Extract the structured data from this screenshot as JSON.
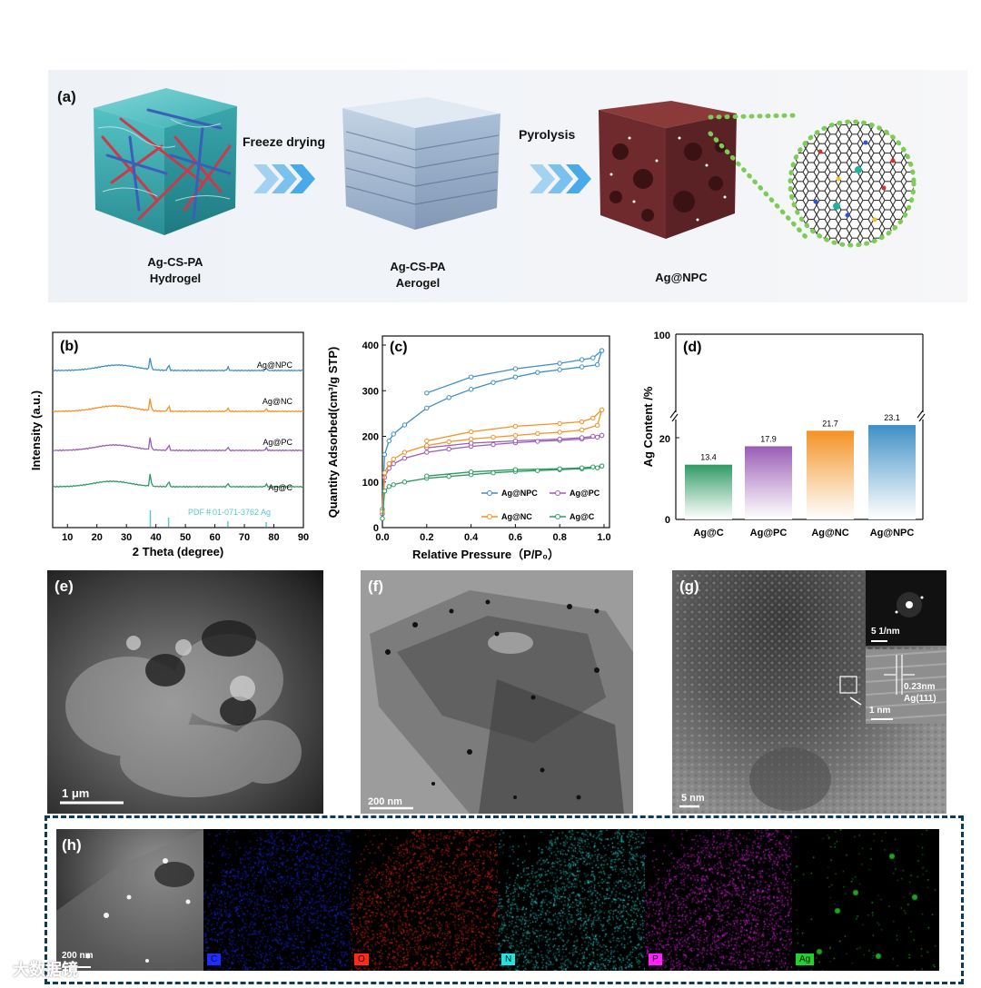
{
  "panel_a": {
    "label": "(a)",
    "arrow1_text": "Freeze drying",
    "arrow2_text": "Pyrolysis",
    "hydrogel_label_line1": "Ag-CS-PA",
    "hydrogel_label_line2": "Hydrogel",
    "aerogel_label_line1": "Ag-CS-PA",
    "aerogel_label_line2": "Aerogel",
    "product_label": "Ag@NPC"
  },
  "panel_b": {
    "label": "(b)",
    "ylabel": "Intensity (a.u.)",
    "xlabel": "2 Theta (degree)",
    "xticks": [
      "10",
      "20",
      "30",
      "40",
      "50",
      "60",
      "70",
      "80",
      "90"
    ],
    "series_labels": [
      "Ag@NPC",
      "Ag@NC",
      "Ag@PC",
      "Ag@C"
    ],
    "reference_label": "PDF＃01-071-3762 Ag",
    "colors": [
      "#3d8fc6",
      "#f39222",
      "#9a5bb5",
      "#2e9a63",
      "#5cc6d0"
    ]
  },
  "panel_c": {
    "label": "(c)",
    "ylabel": "Quantity Adsorbed(cm³/g STP)",
    "xlabel": "Relative Pressure（P/P₀）",
    "yticks": [
      "0",
      "100",
      "200",
      "300",
      "400"
    ],
    "xticks": [
      "0.0",
      "0.2",
      "0.4",
      "0.6",
      "0.8",
      "1.0"
    ],
    "legend": [
      "Ag@NPC",
      "Ag@PC",
      "Ag@NC",
      "Ag@C"
    ]
  },
  "panel_d": {
    "label": "(d)",
    "ylabel": "Ag Content /%",
    "yticks": [
      "0",
      "20",
      "100"
    ]
  },
  "panel_e": {
    "label": "(e)",
    "scale": "1 μm"
  },
  "panel_f": {
    "label": "(f)",
    "scale": "200 nm"
  },
  "panel_g": {
    "label": "(g)",
    "scale": "5 nm",
    "fft_scale": "5 1/nm",
    "inset_scale": "1 nm",
    "d_spacing": "0.23nm",
    "plane": "Ag(111)"
  },
  "panel_h": {
    "label": "(h)",
    "scale": "200 nm",
    "elements": [
      {
        "name": "C",
        "color": "#1f2cff"
      },
      {
        "name": "O",
        "color": "#ff2a1a"
      },
      {
        "name": "N",
        "color": "#22e3e0"
      },
      {
        "name": "P",
        "color": "#ff21ff"
      },
      {
        "name": "Ag",
        "color": "#22d12a"
      }
    ]
  },
  "watermark": "大数据镜",
  "chart_data": [
    {
      "type": "line",
      "title": "",
      "xlabel": "2 Theta (degree)",
      "ylabel": "Intensity (a.u.)",
      "xlim": [
        5,
        90
      ],
      "series": [
        {
          "name": "Ag@NPC",
          "peaks_2theta": [
            38.1,
            44.3,
            64.4,
            77.4
          ],
          "broad_hump_center": 27
        },
        {
          "name": "Ag@NC",
          "peaks_2theta": [
            38.1,
            44.3,
            64.4,
            77.4
          ],
          "broad_hump_center": 26
        },
        {
          "name": "Ag@PC",
          "peaks_2theta": [
            38.1,
            44.3,
            64.4,
            77.4
          ],
          "broad_hump_center": 26
        },
        {
          "name": "Ag@C",
          "peaks_2theta": [
            38.1,
            44.3,
            64.4,
            77.4
          ],
          "broad_hump_center": 25
        },
        {
          "name": "PDF＃01-071-3762 Ag",
          "reference_lines": [
            38.1,
            44.3,
            64.4,
            77.4
          ]
        }
      ]
    },
    {
      "type": "line",
      "title": "",
      "xlabel": "Relative Pressure（P/P₀）",
      "ylabel": "Quantity Adsorbed(cm³/g STP)",
      "xlim": [
        0,
        1
      ],
      "ylim": [
        0,
        400
      ],
      "series": [
        {
          "name": "Ag@NPC",
          "x": [
            0.0,
            0.01,
            0.03,
            0.05,
            0.1,
            0.2,
            0.3,
            0.4,
            0.5,
            0.6,
            0.7,
            0.8,
            0.9,
            0.97,
            0.99
          ],
          "adsorption": [
            40,
            160,
            190,
            205,
            225,
            262,
            285,
            303,
            318,
            330,
            340,
            346,
            352,
            357,
            388
          ],
          "desorption": [
            388,
            372,
            368,
            360,
            348,
            330,
            295
          ]
        },
        {
          "name": "Ag@PC",
          "x": [
            0.0,
            0.01,
            0.03,
            0.05,
            0.1,
            0.2,
            0.3,
            0.4,
            0.5,
            0.6,
            0.7,
            0.8,
            0.9,
            0.97,
            0.99
          ],
          "adsorption": [
            30,
            110,
            130,
            140,
            152,
            165,
            172,
            178,
            182,
            186,
            189,
            191,
            194,
            198,
            202
          ],
          "desorption": [
            202,
            200,
            197,
            194,
            190,
            185,
            175
          ]
        },
        {
          "name": "Ag@NC",
          "x": [
            0.0,
            0.01,
            0.03,
            0.05,
            0.1,
            0.2,
            0.3,
            0.4,
            0.5,
            0.6,
            0.7,
            0.8,
            0.9,
            0.97,
            0.99
          ],
          "adsorption": [
            35,
            120,
            140,
            150,
            165,
            180,
            188,
            194,
            198,
            202,
            206,
            209,
            214,
            224,
            258
          ],
          "desorption": [
            258,
            240,
            232,
            228,
            222,
            210,
            190
          ]
        },
        {
          "name": "Ag@C",
          "x": [
            0.0,
            0.01,
            0.03,
            0.05,
            0.1,
            0.2,
            0.3,
            0.4,
            0.5,
            0.6,
            0.7,
            0.8,
            0.9,
            0.97,
            0.99
          ],
          "adsorption": [
            20,
            80,
            90,
            94,
            100,
            108,
            112,
            116,
            120,
            123,
            125,
            127,
            129,
            131,
            135
          ],
          "desorption": [
            135,
            133,
            131,
            129,
            127,
            122,
            113
          ]
        }
      ]
    },
    {
      "type": "bar",
      "title": "",
      "ylabel": "Ag Content /%",
      "categories": [
        "Ag@C",
        "Ag@PC",
        "Ag@NC",
        "Ag@NPC"
      ],
      "values": [
        13.4,
        17.9,
        21.7,
        23.1
      ],
      "value_labels": [
        "13.4",
        "17.9",
        "21.7",
        "23.1"
      ],
      "colors": [
        "#2e9a63",
        "#9a5bb5",
        "#f39222",
        "#3d8fc6"
      ],
      "ylim": [
        0,
        100
      ],
      "axis_break": true
    }
  ]
}
